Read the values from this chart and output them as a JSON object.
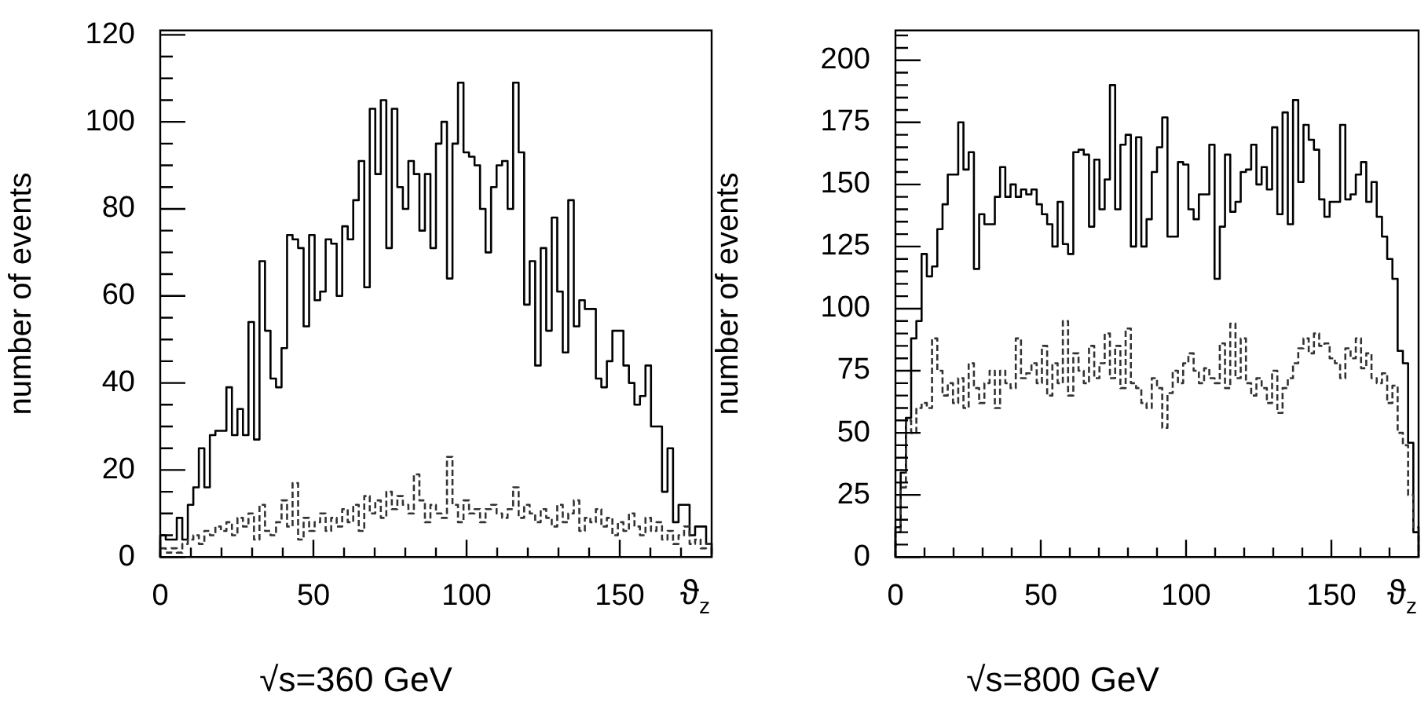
{
  "chart_data": [
    {
      "type": "histogram",
      "title": "√s=360 GeV",
      "xlabel": "ϑ$_{z}$",
      "ylabel": "number of events",
      "bins": [
        0,
        1.8,
        3.6,
        5.4,
        7.2,
        9,
        10.8,
        12.6,
        14.4,
        16.2,
        18,
        19.8,
        21.6,
        23.4,
        25.2,
        27,
        28.8,
        30.6,
        32.4,
        34.2,
        36,
        37.8,
        39.6,
        41.4,
        43.2,
        45,
        46.8,
        48.6,
        50.4,
        52.2,
        54,
        55.8,
        57.6,
        59.4,
        61.2,
        63,
        64.8,
        66.6,
        68.4,
        70.2,
        72,
        73.8,
        75.6,
        77.4,
        79.2,
        81,
        82.8,
        84.6,
        86.4,
        88.2,
        90,
        91.8,
        93.6,
        95.4,
        97.2,
        99,
        100.8,
        102.6,
        104.4,
        106.2,
        108,
        109.8,
        111.6,
        113.4,
        115.2,
        117,
        118.8,
        120.6,
        122.4,
        124.2,
        126,
        127.8,
        129.6,
        131.4,
        133.2,
        135,
        136.8,
        138.6,
        140.4,
        142.2,
        144,
        145.8,
        147.6,
        149.4,
        151.2,
        153,
        154.8,
        156.6,
        158.4,
        160.2,
        162,
        163.8,
        165.6,
        167.4,
        169.2,
        171,
        172.8,
        174.6,
        176.4,
        178.2,
        180
      ],
      "series": [
        {
          "color": "#000000",
          "line_style": "solid",
          "values": [
            5,
            4,
            4,
            9,
            4,
            12,
            16,
            25,
            16,
            28,
            29,
            29,
            39,
            28,
            34,
            28,
            54,
            27,
            68,
            52,
            41,
            39,
            48,
            74,
            73,
            71,
            53,
            74,
            59,
            61,
            73,
            72,
            60,
            76,
            73,
            82,
            91,
            62,
            103,
            88,
            105,
            71,
            103,
            85,
            80,
            91,
            88,
            75,
            88,
            71,
            95,
            100,
            64,
            95,
            109,
            93,
            92,
            90,
            80,
            70,
            85,
            90,
            91,
            80,
            109,
            93,
            58,
            68,
            44,
            71,
            52,
            78,
            61,
            47,
            82,
            53,
            59,
            57,
            57,
            41,
            39,
            45,
            52,
            52,
            44,
            40,
            35,
            37,
            44,
            30,
            30,
            15,
            25,
            8,
            12,
            12,
            5,
            7,
            7,
            3
          ]
        },
        {
          "color": "#333333",
          "line_style": "dashed",
          "values": [
            2,
            1,
            2,
            1,
            3,
            4,
            5,
            3,
            6,
            5,
            7,
            6,
            8,
            5,
            9,
            7,
            10,
            4,
            12,
            6,
            5,
            8,
            13,
            7,
            17,
            4,
            9,
            6,
            8,
            10,
            6,
            9,
            7,
            11,
            8,
            12,
            6,
            14,
            10,
            13,
            9,
            15,
            11,
            14,
            12,
            10,
            19,
            13,
            8,
            12,
            10,
            9,
            23,
            12,
            8,
            13,
            10,
            11,
            8,
            11,
            12,
            10,
            9,
            11,
            16,
            9,
            12,
            10,
            8,
            11,
            9,
            7,
            12,
            8,
            10,
            13,
            6,
            9,
            8,
            11,
            7,
            9,
            5,
            8,
            6,
            10,
            7,
            5,
            9,
            6,
            8,
            4,
            6,
            3,
            5,
            7,
            3,
            4,
            2,
            3
          ]
        }
      ],
      "xlim": [
        0,
        180
      ],
      "ylim": [
        0,
        121
      ],
      "xticks": [
        0,
        {
          "value": 10,
          "label": null
        },
        {
          "value": 20,
          "label": null
        },
        {
          "value": 30,
          "label": null
        },
        {
          "value": 40,
          "label": null
        },
        50,
        {
          "value": 60,
          "label": null
        },
        {
          "value": 70,
          "label": null
        },
        {
          "value": 80,
          "label": null
        },
        {
          "value": 90,
          "label": null
        },
        100,
        {
          "value": 110,
          "label": null
        },
        {
          "value": 120,
          "label": null
        },
        {
          "value": 130,
          "label": null
        },
        {
          "value": 140,
          "label": null
        },
        150,
        {
          "value": 160,
          "label": null
        },
        {
          "value": 170,
          "label": null
        }
      ],
      "yticks": [
        0,
        {
          "value": 5,
          "label": null
        },
        {
          "value": 10,
          "label": null
        },
        {
          "value": 15,
          "label": null
        },
        20,
        {
          "value": 25,
          "label": null
        },
        {
          "value": 30,
          "label": null
        },
        {
          "value": 35,
          "label": null
        },
        40,
        {
          "value": 45,
          "label": null
        },
        {
          "value": 50,
          "label": null
        },
        {
          "value": 55,
          "label": null
        },
        60,
        {
          "value": 65,
          "label": null
        },
        {
          "value": 70,
          "label": null
        },
        {
          "value": 75,
          "label": null
        },
        80,
        {
          "value": 85,
          "label": null
        },
        {
          "value": 90,
          "label": null
        },
        {
          "value": 95,
          "label": null
        },
        100,
        {
          "value": 105,
          "label": null
        },
        {
          "value": 110,
          "label": null
        },
        {
          "value": 115,
          "label": null
        },
        120
      ]
    },
    {
      "type": "histogram",
      "title": "√s=800 GeV",
      "xlabel": "ϑ$_{z}$",
      "ylabel": "number of events",
      "bins": [
        0,
        1.8,
        3.6,
        5.4,
        7.2,
        9,
        10.8,
        12.6,
        14.4,
        16.2,
        18,
        19.8,
        21.6,
        23.4,
        25.2,
        27,
        28.8,
        30.6,
        32.4,
        34.2,
        36,
        37.8,
        39.6,
        41.4,
        43.2,
        45,
        46.8,
        48.6,
        50.4,
        52.2,
        54,
        55.8,
        57.6,
        59.4,
        61.2,
        63,
        64.8,
        66.6,
        68.4,
        70.2,
        72,
        73.8,
        75.6,
        77.4,
        79.2,
        81,
        82.8,
        84.6,
        86.4,
        88.2,
        90,
        91.8,
        93.6,
        95.4,
        97.2,
        99,
        100.8,
        102.6,
        104.4,
        106.2,
        108,
        109.8,
        111.6,
        113.4,
        115.2,
        117,
        118.8,
        120.6,
        122.4,
        124.2,
        126,
        127.8,
        129.6,
        131.4,
        133.2,
        135,
        136.8,
        138.6,
        140.4,
        142.2,
        144,
        145.8,
        147.6,
        149.4,
        151.2,
        153,
        154.8,
        156.6,
        158.4,
        160.2,
        162,
        163.8,
        165.6,
        167.4,
        169.2,
        171,
        172.8,
        174.6,
        176.4,
        178.2,
        180
      ],
      "series": [
        {
          "color": "#000000",
          "line_style": "solid",
          "values": [
            12,
            34,
            56,
            88,
            95,
            122,
            113,
            117,
            132,
            142,
            154,
            154,
            175,
            156,
            163,
            116,
            138,
            134,
            134,
            145,
            157,
            145,
            150,
            145,
            148,
            146,
            148,
            142,
            138,
            134,
            125,
            143,
            126,
            122,
            163,
            164,
            162,
            133,
            160,
            140,
            152,
            190,
            140,
            166,
            170,
            125,
            169,
            125,
            136,
            155,
            165,
            177,
            129,
            129,
            159,
            158,
            140,
            136,
            146,
            146,
            166,
            112,
            133,
            162,
            139,
            143,
            155,
            156,
            166,
            150,
            157,
            148,
            173,
            138,
            179,
            134,
            184,
            151,
            174,
            168,
            164,
            144,
            137,
            143,
            143,
            174,
            144,
            146,
            154,
            159,
            143,
            151,
            137,
            129,
            120,
            112,
            83,
            78,
            46,
            10
          ]
        },
        {
          "color": "#333333",
          "line_style": "dashed",
          "values": [
            10,
            28,
            55,
            50,
            60,
            62,
            60,
            88,
            75,
            65,
            70,
            62,
            72,
            60,
            78,
            68,
            62,
            70,
            75,
            60,
            75,
            70,
            68,
            88,
            72,
            74,
            78,
            70,
            85,
            65,
            78,
            70,
            95,
            65,
            82,
            75,
            70,
            85,
            72,
            78,
            90,
            72,
            85,
            68,
            92,
            70,
            68,
            62,
            60,
            72,
            68,
            52,
            66,
            75,
            70,
            78,
            82,
            75,
            70,
            76,
            72,
            70,
            86,
            68,
            94,
            72,
            88,
            70,
            65,
            72,
            68,
            62,
            75,
            58,
            68,
            72,
            78,
            84,
            88,
            82,
            90,
            85,
            86,
            80,
            78,
            72,
            84,
            80,
            88,
            76,
            82,
            72,
            70,
            74,
            62,
            69,
            50,
            45,
            25,
            12
          ]
        }
      ],
      "xlim": [
        0,
        180
      ],
      "ylim": [
        0,
        212
      ],
      "xticks": [
        0,
        {
          "value": 10,
          "label": null
        },
        {
          "value": 20,
          "label": null
        },
        {
          "value": 30,
          "label": null
        },
        {
          "value": 40,
          "label": null
        },
        50,
        {
          "value": 60,
          "label": null
        },
        {
          "value": 70,
          "label": null
        },
        {
          "value": 80,
          "label": null
        },
        {
          "value": 90,
          "label": null
        },
        100,
        {
          "value": 110,
          "label": null
        },
        {
          "value": 120,
          "label": null
        },
        {
          "value": 130,
          "label": null
        },
        {
          "value": 140,
          "label": null
        },
        150,
        {
          "value": 160,
          "label": null
        },
        {
          "value": 170,
          "label": null
        }
      ],
      "yticks": [
        0,
        {
          "value": 5,
          "label": null
        },
        {
          "value": 10,
          "label": null
        },
        {
          "value": 15,
          "label": null
        },
        {
          "value": 20,
          "label": null
        },
        25,
        {
          "value": 30,
          "label": null
        },
        {
          "value": 35,
          "label": null
        },
        {
          "value": 40,
          "label": null
        },
        {
          "value": 45,
          "label": null
        },
        50,
        {
          "value": 55,
          "label": null
        },
        {
          "value": 60,
          "label": null
        },
        {
          "value": 65,
          "label": null
        },
        {
          "value": 70,
          "label": null
        },
        75,
        {
          "value": 80,
          "label": null
        },
        {
          "value": 85,
          "label": null
        },
        {
          "value": 90,
          "label": null
        },
        {
          "value": 95,
          "label": null
        },
        100,
        {
          "value": 105,
          "label": null
        },
        {
          "value": 110,
          "label": null
        },
        {
          "value": 115,
          "label": null
        },
        {
          "value": 120,
          "label": null
        },
        125,
        {
          "value": 130,
          "label": null
        },
        {
          "value": 135,
          "label": null
        },
        {
          "value": 140,
          "label": null
        },
        {
          "value": 145,
          "label": null
        },
        150,
        {
          "value": 155,
          "label": null
        },
        {
          "value": 160,
          "label": null
        },
        {
          "value": 165,
          "label": null
        },
        {
          "value": 170,
          "label": null
        },
        175,
        {
          "value": 180,
          "label": null
        },
        {
          "value": 185,
          "label": null
        },
        {
          "value": 190,
          "label": null
        },
        {
          "value": 195,
          "label": null
        },
        200,
        {
          "value": 205,
          "label": null
        },
        {
          "value": 210,
          "label": null
        }
      ]
    }
  ]
}
